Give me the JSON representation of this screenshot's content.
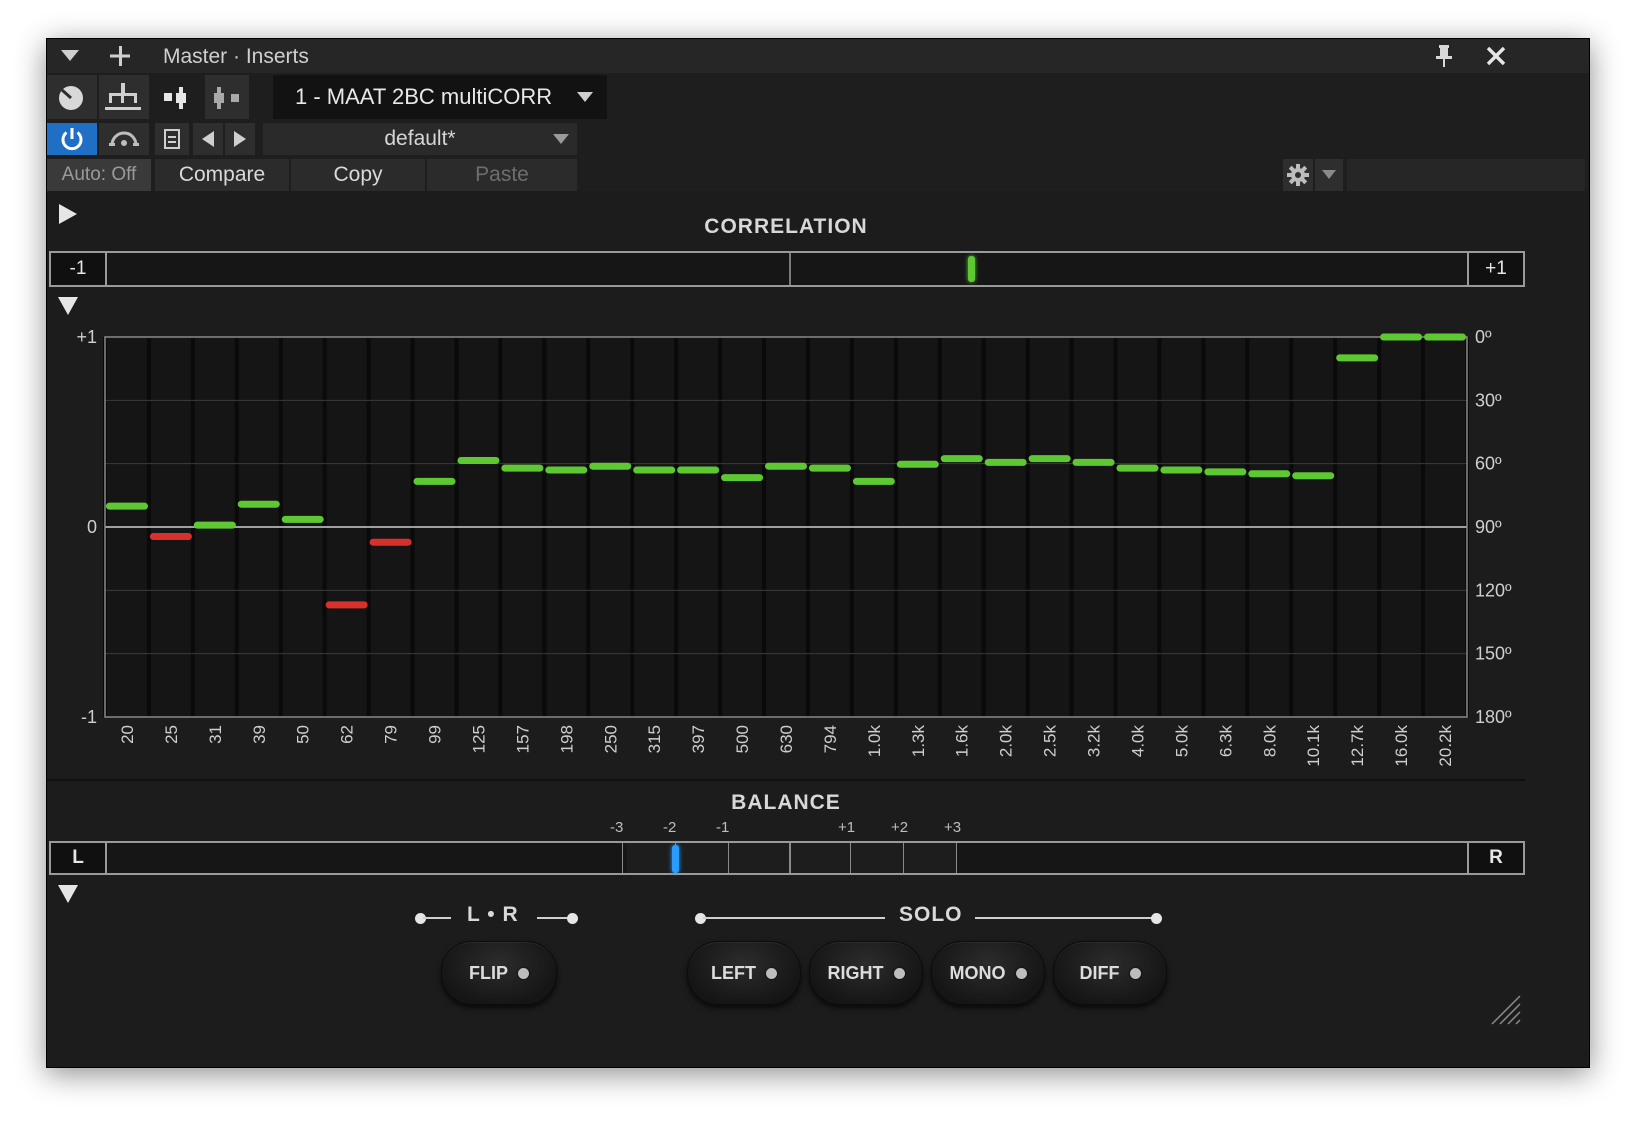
{
  "window": {
    "title": "Master · Inserts"
  },
  "toolbar": {
    "plugin_name": "1 - MAAT 2BC multiCORR",
    "preset_name": "default*",
    "auto_label": "Auto: Off",
    "compare_label": "Compare",
    "copy_label": "Copy",
    "paste_label": "Paste"
  },
  "colors": {
    "accent": "#1f6fc5",
    "meter_green": "#5ec832",
    "meter_red": "#d8302b",
    "balance_blue": "#2a9bff"
  },
  "correlation": {
    "title": "CORRELATION",
    "left_label": "-1",
    "right_label": "+1",
    "value": 0.27
  },
  "chart_data": {
    "type": "bar",
    "categories": [
      "20",
      "25",
      "31",
      "39",
      "50",
      "62",
      "79",
      "99",
      "125",
      "157",
      "198",
      "250",
      "315",
      "397",
      "500",
      "630",
      "794",
      "1.0k",
      "1.3k",
      "1.6k",
      "2.0k",
      "2.5k",
      "3.2k",
      "4.0k",
      "5.0k",
      "6.3k",
      "8.0k",
      "10.1k",
      "12.7k",
      "16.0k",
      "20.2k"
    ],
    "values": [
      0.11,
      -0.05,
      0.01,
      0.12,
      0.04,
      -0.41,
      -0.08,
      0.24,
      0.35,
      0.31,
      0.3,
      0.32,
      0.3,
      0.3,
      0.26,
      0.32,
      0.31,
      0.24,
      0.33,
      0.36,
      0.34,
      0.36,
      0.34,
      0.31,
      0.3,
      0.29,
      0.28,
      0.27,
      0.89,
      1.0,
      1.0
    ],
    "ylim": [
      -1,
      1
    ],
    "yticks_left": [
      "+1",
      "0",
      "-1"
    ],
    "yticks_right": [
      "0º",
      "30º",
      "60º",
      "90º",
      "120º",
      "150º",
      "180º"
    ],
    "grid": true
  },
  "balance": {
    "title": "BALANCE",
    "left_label": "L",
    "right_label": "R",
    "ticks": [
      "-3",
      "-2",
      "-1",
      "+1",
      "+2",
      "+3"
    ],
    "value": -2
  },
  "lr": {
    "label": "L • R",
    "flip_label": "FLIP"
  },
  "solo": {
    "label": "SOLO",
    "buttons": [
      "LEFT",
      "RIGHT",
      "MONO",
      "DIFF"
    ]
  }
}
